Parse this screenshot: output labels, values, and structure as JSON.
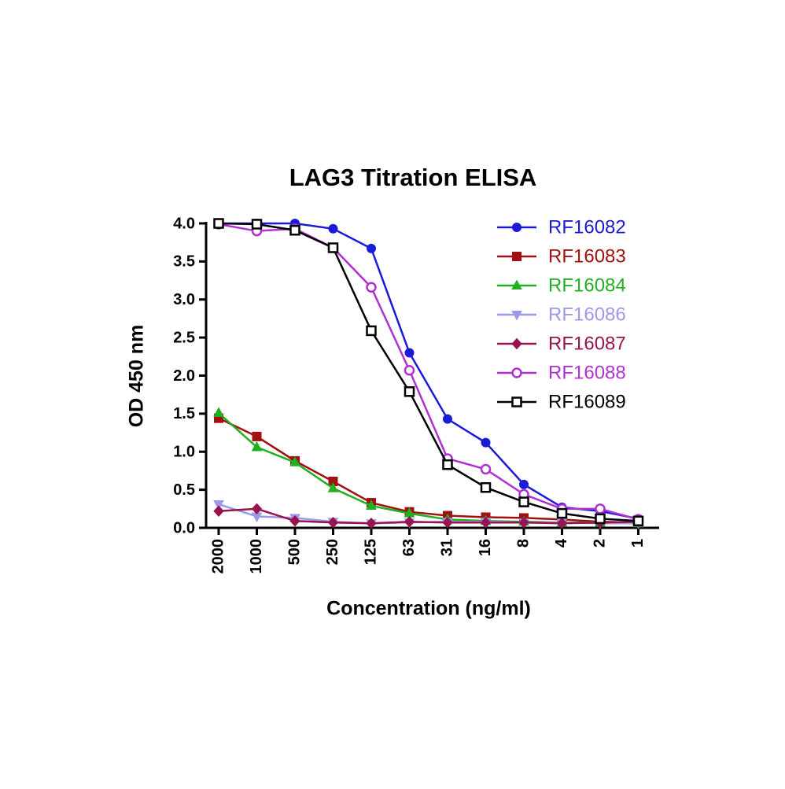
{
  "chart_data": {
    "type": "line",
    "title": "LAG3 Titration ELISA",
    "x_label": "Concentration (ng/ml)",
    "y_label": "OD 450 nm",
    "categories": [
      "2000",
      "1000",
      "500",
      "250",
      "125",
      "63",
      "31",
      "16",
      "8",
      "4",
      "2",
      "1"
    ],
    "ylim": [
      0,
      4
    ],
    "yticks": [
      {
        "value": 0,
        "label": "0.0"
      },
      0.5,
      {
        "value": 1,
        "label": "1.0"
      },
      1.5,
      {
        "value": 2,
        "label": "2.0"
      },
      2.5,
      {
        "value": 3,
        "label": "3.0"
      },
      3.5,
      {
        "value": 4,
        "label": "4.0"
      }
    ],
    "legend": "top-right",
    "series": [
      {
        "name": "RF16082",
        "color": "#1a1ad8",
        "marker": "circle",
        "values": [
          4.0,
          4.0,
          4.0,
          3.93,
          3.67,
          2.3,
          1.43,
          1.12,
          0.57,
          0.27,
          0.22,
          0.12
        ]
      },
      {
        "name": "RF16083",
        "color": "#a01212",
        "marker": "square",
        "values": [
          1.44,
          1.2,
          0.88,
          0.61,
          0.33,
          0.21,
          0.16,
          0.14,
          0.13,
          0.11,
          0.08,
          0.07
        ]
      },
      {
        "name": "RF16084",
        "color": "#22b022",
        "marker": "triangle",
        "values": [
          1.51,
          1.06,
          0.86,
          0.52,
          0.29,
          0.19,
          0.11,
          0.09,
          0.08,
          0.07,
          0.07,
          0.06
        ]
      },
      {
        "name": "RF16086",
        "color": "#9a9aea",
        "marker": "triangle-down",
        "values": [
          0.31,
          0.15,
          0.13,
          0.08,
          0.06,
          0.07,
          0.08,
          0.08,
          0.07,
          0.07,
          0.06,
          0.06
        ]
      },
      {
        "name": "RF16087",
        "color": "#981450",
        "marker": "diamond",
        "values": [
          0.22,
          0.25,
          0.09,
          0.07,
          0.06,
          0.08,
          0.07,
          0.07,
          0.07,
          0.06,
          0.07,
          0.08
        ]
      },
      {
        "name": "RF16088",
        "color": "#b030d0",
        "marker": "open-circle",
        "values": [
          3.99,
          3.9,
          3.93,
          3.68,
          3.16,
          2.07,
          0.91,
          0.77,
          0.44,
          0.25,
          0.25,
          0.11
        ]
      },
      {
        "name": "RF16089",
        "color": "#000000",
        "marker": "open-square",
        "values": [
          4.0,
          3.99,
          3.91,
          3.68,
          2.59,
          1.79,
          0.83,
          0.53,
          0.34,
          0.19,
          0.12,
          0.09
        ]
      }
    ]
  }
}
